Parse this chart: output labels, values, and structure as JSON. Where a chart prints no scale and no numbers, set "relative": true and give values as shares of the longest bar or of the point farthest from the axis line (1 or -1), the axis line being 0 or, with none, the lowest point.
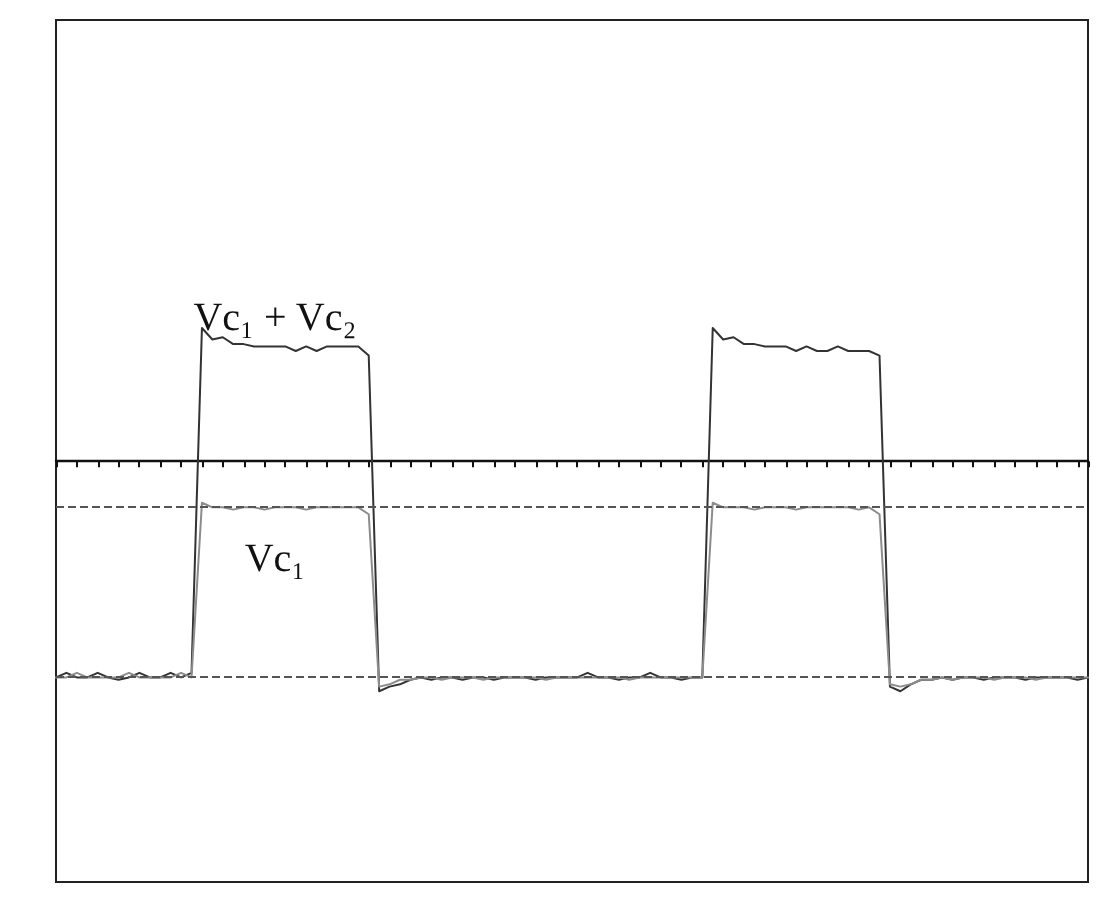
{
  "chart_data": {
    "type": "line",
    "relative": true,
    "categories": [
      null,
      null,
      null,
      null,
      null,
      null,
      null,
      null,
      null,
      null,
      null,
      null,
      null,
      null,
      null,
      null,
      null,
      null,
      null,
      null,
      null,
      null,
      null,
      null,
      null,
      null,
      null,
      null,
      null,
      null,
      null,
      null,
      null,
      null,
      null,
      null,
      null,
      null,
      null,
      null,
      null,
      null,
      null,
      null,
      null,
      null,
      null,
      null,
      null,
      null,
      null,
      null,
      null,
      null,
      null,
      null,
      null,
      null,
      null,
      null,
      null,
      null,
      null,
      null,
      null,
      null,
      null,
      null,
      null,
      null,
      null,
      null,
      null,
      null,
      null,
      null,
      null,
      null,
      null,
      null,
      null,
      null,
      null,
      null,
      null,
      null,
      null,
      null,
      null,
      null,
      null,
      null,
      null,
      null,
      null,
      null,
      null,
      null,
      null,
      null
    ],
    "series": [
      {
        "name": "Vc₁ + Vc₂",
        "color": "#333333",
        "values": [
          -0.94,
          -0.92,
          -0.94,
          -0.94,
          -0.92,
          -0.94,
          -0.95,
          -0.94,
          -0.92,
          -0.94,
          -0.94,
          -0.92,
          -0.94,
          -0.92,
          0.58,
          0.53,
          0.54,
          0.51,
          0.51,
          0.5,
          0.5,
          0.5,
          0.5,
          0.48,
          0.5,
          0.48,
          0.5,
          0.5,
          0.5,
          0.5,
          0.46,
          -1,
          -0.98,
          -0.97,
          -0.95,
          -0.94,
          -0.95,
          -0.94,
          -0.94,
          -0.95,
          -0.94,
          -0.94,
          -0.95,
          -0.94,
          -0.94,
          -0.94,
          -0.95,
          -0.94,
          -0.94,
          -0.94,
          -0.94,
          -0.92,
          -0.94,
          -0.94,
          -0.95,
          -0.94,
          -0.94,
          -0.92,
          -0.94,
          -0.94,
          -0.95,
          -0.94,
          -0.94,
          0.58,
          0.53,
          0.54,
          0.51,
          0.51,
          0.5,
          0.5,
          0.5,
          0.48,
          0.5,
          0.48,
          0.48,
          0.5,
          0.48,
          0.48,
          0.48,
          0.46,
          -0.98,
          -1,
          -0.97,
          -0.95,
          -0.95,
          -0.94,
          -0.95,
          -0.94,
          -0.94,
          -0.95,
          -0.94,
          -0.94,
          -0.94,
          -0.95,
          -0.94,
          -0.94,
          -0.94,
          -0.94,
          -0.95,
          -0.94
        ]
      },
      {
        "name": "Vc₁",
        "color": "#8c8c8c",
        "values": [
          -0.94,
          -0.94,
          -0.92,
          -0.94,
          -0.94,
          -0.94,
          -0.94,
          -0.92,
          -0.94,
          -0.94,
          -0.94,
          -0.94,
          -0.92,
          -0.94,
          -0.18,
          -0.2,
          -0.2,
          -0.21,
          -0.2,
          -0.2,
          -0.21,
          -0.2,
          -0.2,
          -0.2,
          -0.21,
          -0.2,
          -0.2,
          -0.2,
          -0.2,
          -0.2,
          -0.23,
          -0.98,
          -0.97,
          -0.95,
          -0.95,
          -0.94,
          -0.94,
          -0.95,
          -0.94,
          -0.94,
          -0.94,
          -0.95,
          -0.94,
          -0.94,
          -0.94,
          -0.94,
          -0.94,
          -0.95,
          -0.94,
          -0.94,
          -0.94,
          -0.94,
          -0.94,
          -0.94,
          -0.94,
          -0.95,
          -0.94,
          -0.94,
          -0.94,
          -0.94,
          -0.94,
          -0.94,
          -0.94,
          -0.18,
          -0.2,
          -0.2,
          -0.2,
          -0.21,
          -0.2,
          -0.2,
          -0.2,
          -0.21,
          -0.2,
          -0.2,
          -0.2,
          -0.2,
          -0.2,
          -0.21,
          -0.2,
          -0.23,
          -0.97,
          -0.98,
          -0.97,
          -0.95,
          -0.95,
          -0.94,
          -0.95,
          -0.94,
          -0.94,
          -0.94,
          -0.95,
          -0.94,
          -0.94,
          -0.94,
          -0.95,
          -0.94,
          -0.94,
          -0.94,
          -0.94,
          -0.94
        ]
      }
    ],
    "ref_lines": [
      {
        "axis": "y",
        "value": -0.94,
        "line_style": "dashed",
        "color": "#555555"
      },
      {
        "axis": "y",
        "value": -0.2,
        "line_style": "dashed",
        "color": "#555555"
      }
    ],
    "grid": false,
    "legend": false,
    "marker": "none",
    "line_style": "solid"
  }
}
